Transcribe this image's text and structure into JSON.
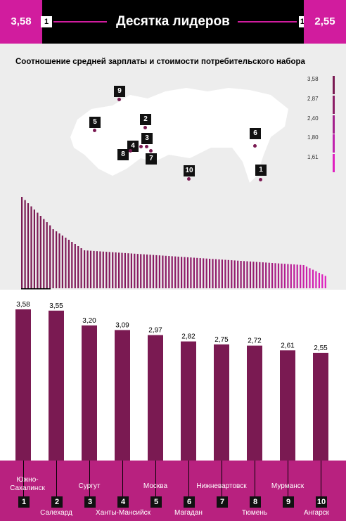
{
  "header": {
    "title": "Десятка лидеров",
    "left_value": "3,58",
    "left_badge": "1",
    "right_badge": "10",
    "right_value": "2,55"
  },
  "subtitle": "Соотношение средней зарплаты и стоимости потребительского набора",
  "legend": {
    "ticks": [
      "3,58",
      "2,87",
      "2,40",
      "1,80",
      "1,61"
    ]
  },
  "map_pins": [
    "9",
    "5",
    "2",
    "3",
    "4",
    "8",
    "7",
    "10",
    "6",
    "1"
  ],
  "colors": {
    "dark": "#7a1a52",
    "magenta": "#e020c0",
    "band": "#b8217f",
    "accent": "#d11c9e"
  },
  "chart_data": {
    "type": "bar",
    "title": "",
    "categories": [
      "Южно-Сахалинск",
      "Салехард",
      "Сургут",
      "Ханты-Мансийск",
      "Москва",
      "Магадан",
      "Нижневартовск",
      "Тюмень",
      "Мурманск",
      "Ангарск"
    ],
    "ranks": [
      "1",
      "2",
      "3",
      "4",
      "5",
      "6",
      "7",
      "8",
      "9",
      "10"
    ],
    "values": [
      3.58,
      3.55,
      3.2,
      3.09,
      2.97,
      2.82,
      2.75,
      2.72,
      2.61,
      2.55
    ],
    "labels": [
      "3,58",
      "3,55",
      "3,20",
      "3,09",
      "2,97",
      "2,82",
      "2,75",
      "2,72",
      "2,61",
      "2,55"
    ],
    "ylim": [
      0,
      3.58
    ]
  }
}
